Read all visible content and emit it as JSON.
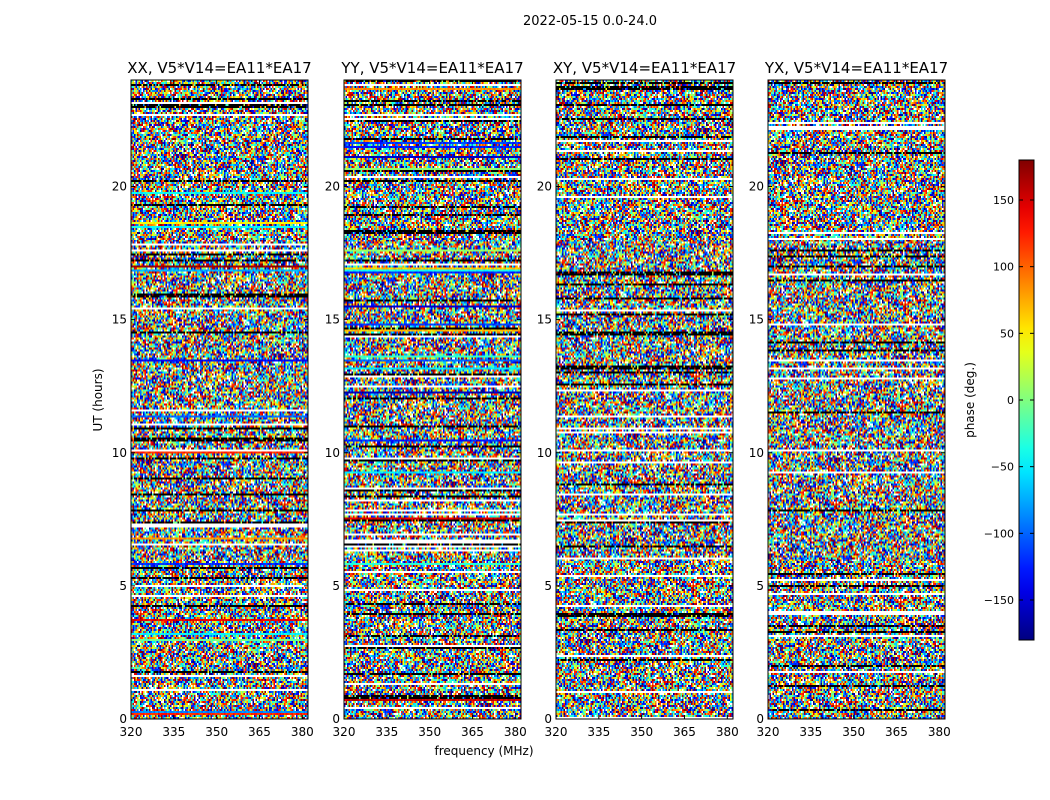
{
  "suptitle": "2022-05-15 0.0-24.0",
  "chart_data": {
    "type": "heatmap",
    "title": "2022-05-15 0.0-24.0",
    "xlabel": "frequency (MHz)",
    "ylabel": "UT (hours)",
    "colorbar_label": "phase (deg.)",
    "colormap": "jet",
    "value_range": [
      -180,
      180
    ],
    "xlim": [
      320,
      382
    ],
    "ylim": [
      0,
      24
    ],
    "xticks": [
      320,
      335,
      350,
      365,
      380
    ],
    "yticks": [
      0,
      5,
      10,
      15,
      20
    ],
    "colorbar_ticks": [
      -150,
      -100,
      -50,
      0,
      50,
      100,
      150
    ],
    "panels": [
      {
        "title": "XX, V5*V14=EA11*EA17",
        "polarization": "XX"
      },
      {
        "title": "YY, V5*V14=EA11*EA17",
        "polarization": "YY"
      },
      {
        "title": "XY, V5*V14=EA11*EA17",
        "polarization": "XY"
      },
      {
        "title": "YX, V5*V14=EA11*EA17",
        "polarization": "YX"
      }
    ]
  }
}
